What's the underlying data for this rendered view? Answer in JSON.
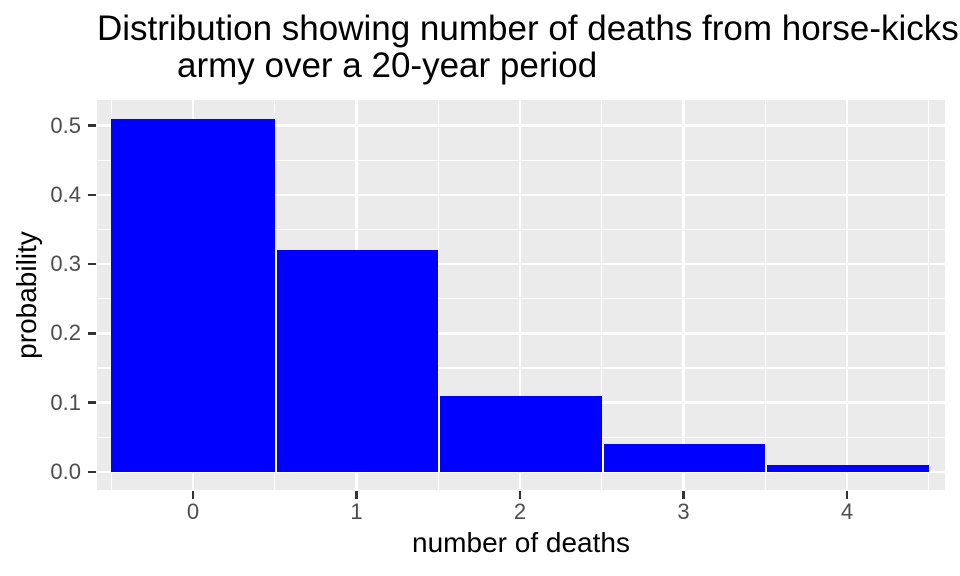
{
  "title": {
    "line1": "Distribution showing number of deaths from horse-kicks",
    "line2": "army over a 20-year period"
  },
  "chart_data": {
    "type": "bar",
    "title": "Distribution showing number of deaths from horse-kicks army over a 20-year period",
    "categories": [
      "0",
      "1",
      "2",
      "3",
      "4"
    ],
    "values": [
      0.51,
      0.32,
      0.11,
      0.04,
      0.01
    ],
    "xlabel": "number of deaths",
    "ylabel": "probability",
    "x_ticks": [
      "0",
      "1",
      "2",
      "3",
      "4"
    ],
    "y_ticks": [
      "0.0",
      "0.1",
      "0.2",
      "0.3",
      "0.4",
      "0.5"
    ],
    "ylim": [
      -0.026,
      0.54
    ],
    "xlim": [
      -0.59,
      4.59
    ],
    "bar_width": 1.0,
    "grid": {
      "major": true,
      "minor": true
    },
    "legend_position": "none"
  },
  "colors": {
    "bar": "#0000ff",
    "panel_background": "#ebebeb",
    "gridline": "#ffffff",
    "tick_mark": "#333333",
    "tick_label": "#4d4d4d",
    "text": "#000000",
    "background": "#ffffff"
  }
}
